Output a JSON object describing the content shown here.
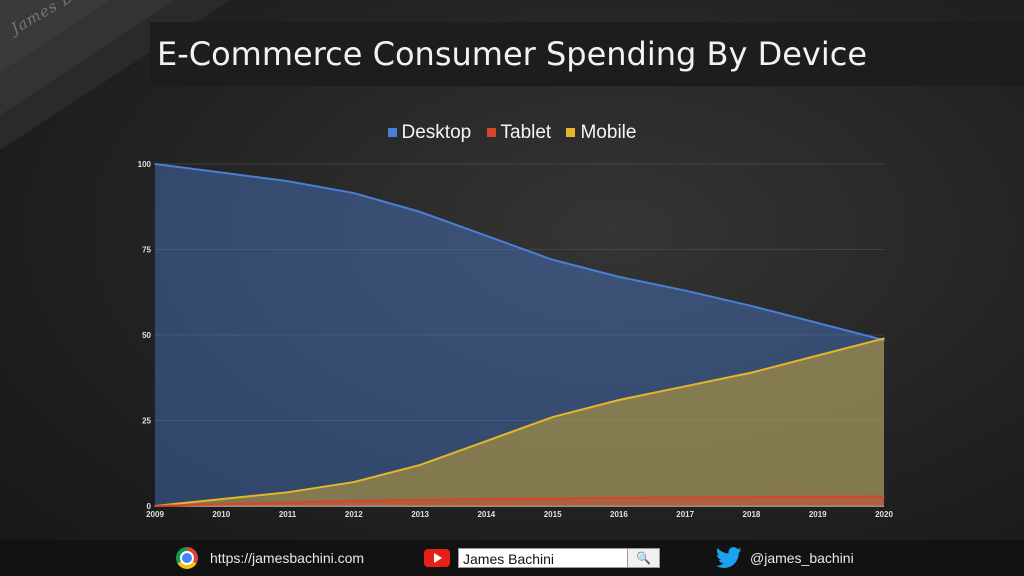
{
  "page": {
    "title": "E-Commerce Consumer Spending By Device",
    "brand": "James Bachini"
  },
  "footer": {
    "website": "https://jamesbachini.com",
    "youtube_channel": "James Bachini",
    "twitter": "@james_bachini",
    "icons": {
      "website": "chrome-icon",
      "youtube": "youtube-icon",
      "search": "search-icon",
      "twitter": "twitter-icon"
    }
  },
  "chart_data": {
    "type": "area",
    "title": "E-Commerce Consumer Spending By Device",
    "xlabel": "",
    "ylabel": "",
    "x": [
      "2009",
      "2010",
      "2011",
      "2012",
      "2013",
      "2014",
      "2015",
      "2016",
      "2017",
      "2018",
      "2019",
      "2020"
    ],
    "ylim": [
      0,
      100
    ],
    "yticks": [
      0,
      25,
      50,
      75,
      100
    ],
    "grid": true,
    "legend_position": "top",
    "series": [
      {
        "name": "Desktop",
        "color": "#4a7fd6",
        "values": [
          100,
          97.5,
          95,
          91.5,
          86,
          79,
          72,
          67,
          63,
          58.5,
          53.5,
          48.5
        ]
      },
      {
        "name": "Tablet",
        "color": "#d9442e",
        "values": [
          0,
          0.5,
          1.0,
          1.5,
          1.8,
          2.0,
          2.2,
          2.4,
          2.5,
          2.6,
          2.7,
          2.8
        ]
      },
      {
        "name": "Mobile",
        "color": "#e6b62a",
        "values": [
          0,
          2.0,
          4.0,
          7.0,
          12.0,
          19.0,
          26.0,
          31.0,
          35.0,
          39.0,
          44.0,
          49.0
        ]
      }
    ]
  }
}
